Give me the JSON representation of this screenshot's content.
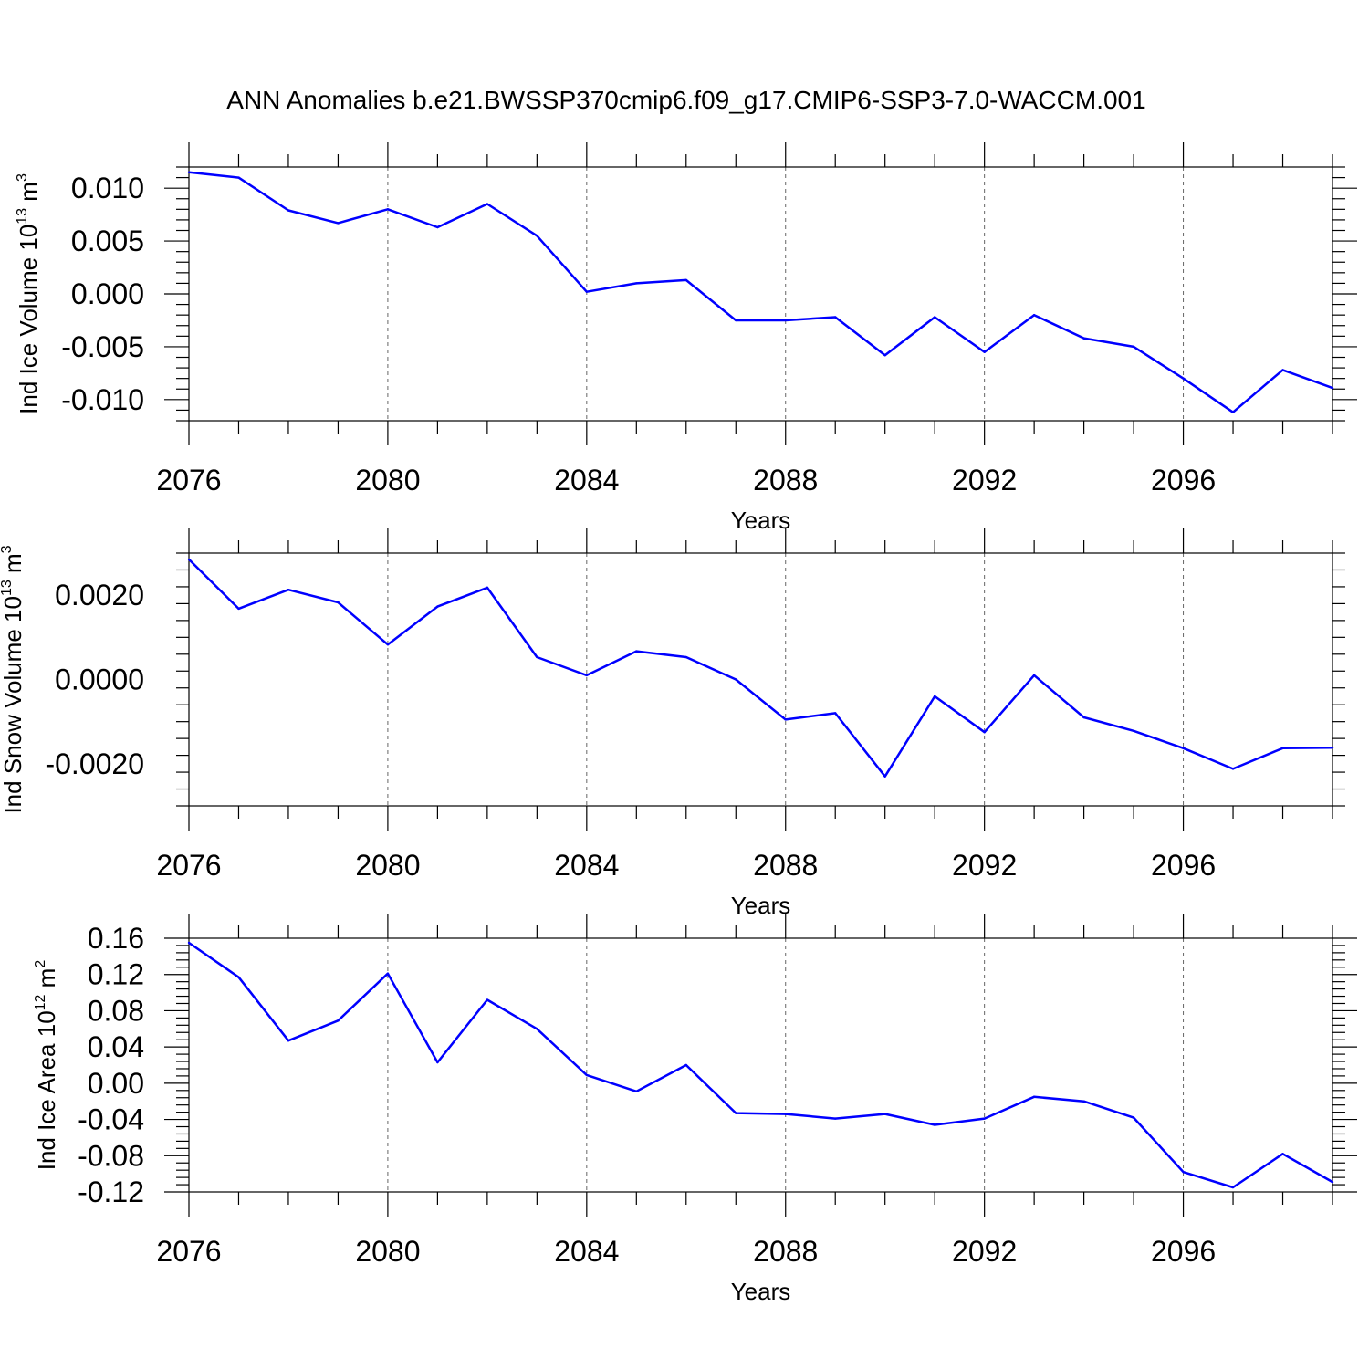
{
  "figure": {
    "title": "ANN Anomalies b.e21.BWSSP370cmip6.f09_g17.CMIP6-SSP3-7.0-WACCM.001",
    "line_color": "#0000ff",
    "grid_color": "#000000"
  },
  "chart_data": [
    {
      "type": "line",
      "xlabel": "Years",
      "ylabel": {
        "prefix": "Ind Ice Volume 10",
        "exp": "13",
        "unit": " m",
        "unit_exp": "3"
      },
      "xlim": [
        2076,
        2099
      ],
      "ylim": [
        -0.012,
        0.012
      ],
      "xticks": [
        2076,
        2080,
        2084,
        2088,
        2092,
        2096
      ],
      "xticklabels": [
        "2076",
        "2080",
        "2084",
        "2088",
        "2092",
        "2096"
      ],
      "yticks": [
        -0.01,
        -0.005,
        0,
        0.005,
        0.01
      ],
      "yticklabels": [
        "-0.010",
        "-0.005",
        "0.000",
        "0.005",
        "0.010"
      ],
      "grid": "vertical-dashed",
      "x": [
        2076,
        2077,
        2078,
        2079,
        2080,
        2081,
        2082,
        2083,
        2084,
        2085,
        2086,
        2087,
        2088,
        2089,
        2090,
        2091,
        2092,
        2093,
        2094,
        2095,
        2096,
        2097,
        2098,
        2099
      ],
      "values": [
        0.0115,
        0.011,
        0.0079,
        0.0067,
        0.008,
        0.0063,
        0.0085,
        0.0055,
        0.0002,
        0.001,
        0.0013,
        -0.0025,
        -0.0025,
        -0.0022,
        -0.0058,
        -0.0022,
        -0.0055,
        -0.002,
        -0.0042,
        -0.005,
        -0.008,
        -0.0112,
        -0.0072,
        -0.0089
      ]
    },
    {
      "type": "line",
      "xlabel": "Years",
      "ylabel": {
        "prefix": "Ind Snow Volume 10",
        "exp": "13",
        "unit": " m",
        "unit_exp": "3"
      },
      "xlim": [
        2076,
        2099
      ],
      "ylim": [
        -0.003,
        0.003
      ],
      "xticks": [
        2076,
        2080,
        2084,
        2088,
        2092,
        2096
      ],
      "xticklabels": [
        "2076",
        "2080",
        "2084",
        "2088",
        "2092",
        "2096"
      ],
      "yticks": [
        -0.002,
        0,
        0.002
      ],
      "yticklabels": [
        "-0.0020",
        "0.0000",
        "0.0020"
      ],
      "grid": "vertical-dashed",
      "x": [
        2076,
        2077,
        2078,
        2079,
        2080,
        2081,
        2082,
        2083,
        2084,
        2085,
        2086,
        2087,
        2088,
        2089,
        2090,
        2091,
        2092,
        2093,
        2094,
        2095,
        2096,
        2097,
        2098,
        2099
      ],
      "values": [
        0.00285,
        0.00168,
        0.00213,
        0.00183,
        0.00083,
        0.00173,
        0.00218,
        0.00053,
        0.0001,
        0.00067,
        0.00053,
        0.0,
        -0.00095,
        -0.0008,
        -0.0023,
        -0.0004,
        -0.00125,
        0.0001,
        -0.0009,
        -0.00122,
        -0.00163,
        -0.00212,
        -0.00163,
        -0.00162
      ]
    },
    {
      "type": "line",
      "xlabel": "Years",
      "ylabel": {
        "prefix": "Ind Ice Area 10",
        "exp": "12",
        "unit": " m",
        "unit_exp": "2"
      },
      "xlim": [
        2076,
        2099
      ],
      "ylim": [
        -0.12,
        0.16
      ],
      "xticks": [
        2076,
        2080,
        2084,
        2088,
        2092,
        2096
      ],
      "xticklabels": [
        "2076",
        "2080",
        "2084",
        "2088",
        "2092",
        "2096"
      ],
      "yticks": [
        -0.12,
        -0.08,
        -0.04,
        0,
        0.04,
        0.08,
        0.12,
        0.16
      ],
      "yticklabels": [
        "-0.12",
        "-0.08",
        "-0.04",
        "0.00",
        "0.04",
        "0.08",
        "0.12",
        "0.16"
      ],
      "grid": "vertical-dashed",
      "x": [
        2076,
        2077,
        2078,
        2079,
        2080,
        2081,
        2082,
        2083,
        2084,
        2085,
        2086,
        2087,
        2088,
        2089,
        2090,
        2091,
        2092,
        2093,
        2094,
        2095,
        2096,
        2097,
        2098,
        2099
      ],
      "values": [
        0.155,
        0.117,
        0.047,
        0.069,
        0.121,
        0.023,
        0.092,
        0.06,
        0.009,
        -0.009,
        0.02,
        -0.033,
        -0.034,
        -0.039,
        -0.034,
        -0.046,
        -0.039,
        -0.015,
        -0.02,
        -0.038,
        -0.098,
        -0.115,
        -0.078,
        -0.109
      ]
    }
  ]
}
